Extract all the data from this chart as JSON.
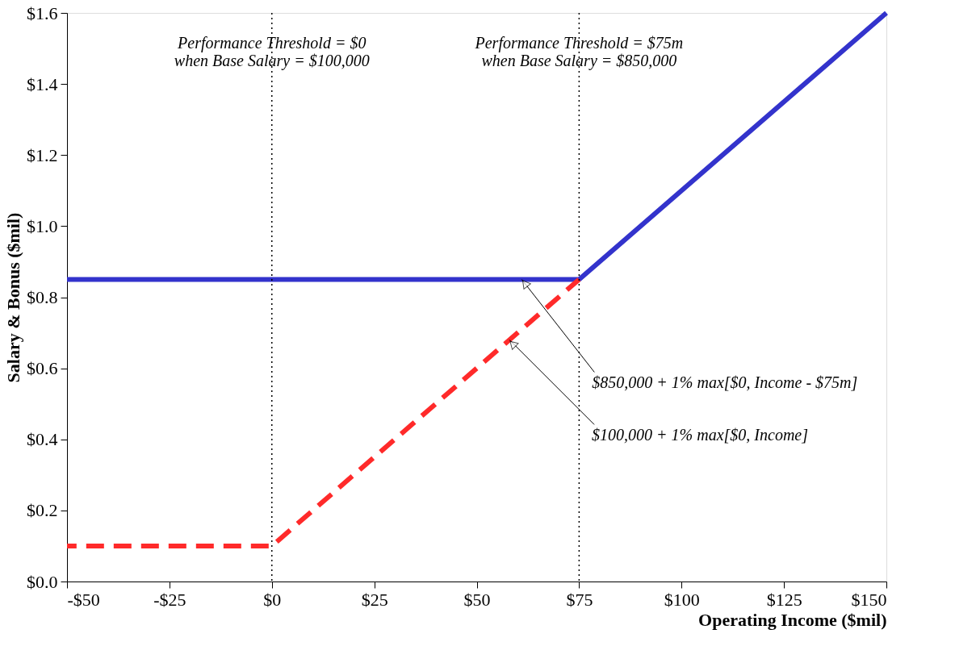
{
  "chart_data": {
    "type": "line",
    "xlabel": "Operating Income ($mil)",
    "ylabel": "Salary & Bonus ($mil)",
    "xlim": [
      -50,
      150
    ],
    "ylim": [
      0,
      1.6
    ],
    "xticks": [
      {
        "value": -50,
        "label": "-$50"
      },
      {
        "value": -25,
        "label": "-$25"
      },
      {
        "value": 0,
        "label": "$0"
      },
      {
        "value": 25,
        "label": "$25"
      },
      {
        "value": 50,
        "label": "$50"
      },
      {
        "value": 75,
        "label": "$75"
      },
      {
        "value": 100,
        "label": "$100"
      },
      {
        "value": 125,
        "label": "$125"
      },
      {
        "value": 150,
        "label": "$150"
      }
    ],
    "yticks": [
      {
        "value": 0,
        "label": "$0.0"
      },
      {
        "value": 0.2,
        "label": "$0.2"
      },
      {
        "value": 0.4,
        "label": "$0.4"
      },
      {
        "value": 0.6,
        "label": "$0.6"
      },
      {
        "value": 0.8,
        "label": "$0.8"
      },
      {
        "value": 1.0,
        "label": "$1.0"
      },
      {
        "value": 1.2,
        "label": "$1.2"
      },
      {
        "value": 1.4,
        "label": "$1.4"
      },
      {
        "value": 1.6,
        "label": "$1.6"
      }
    ],
    "series": [
      {
        "color": "#3333cc",
        "line_style": "solid",
        "x": [
          -50,
          75,
          150
        ],
        "values": [
          0.85,
          0.85,
          1.6
        ]
      },
      {
        "color": "#ff2a2a",
        "line_style": "dashed",
        "x": [
          -50,
          0,
          75
        ],
        "values": [
          0.1,
          0.1,
          0.85
        ]
      }
    ],
    "ref_lines": [
      {
        "axis": "x",
        "value": 0,
        "label": "Performance Threshold = $0\nwhen Base Salary = $100,000",
        "color": "#000000",
        "line_style": "dotted"
      },
      {
        "axis": "x",
        "value": 75,
        "label": "Performance Threshold = $75m\nwhen Base Salary = $850,000",
        "color": "#000000",
        "line_style": "dotted"
      }
    ],
    "annotations": [
      {
        "text": "$850,000 + 1% max[$0, Income - $75m]",
        "x": 61,
        "y": 0.85
      },
      {
        "text": "$100,000 + 1% max[$0, Income]",
        "x": 58,
        "y": 0.68
      }
    ],
    "grid": false
  }
}
